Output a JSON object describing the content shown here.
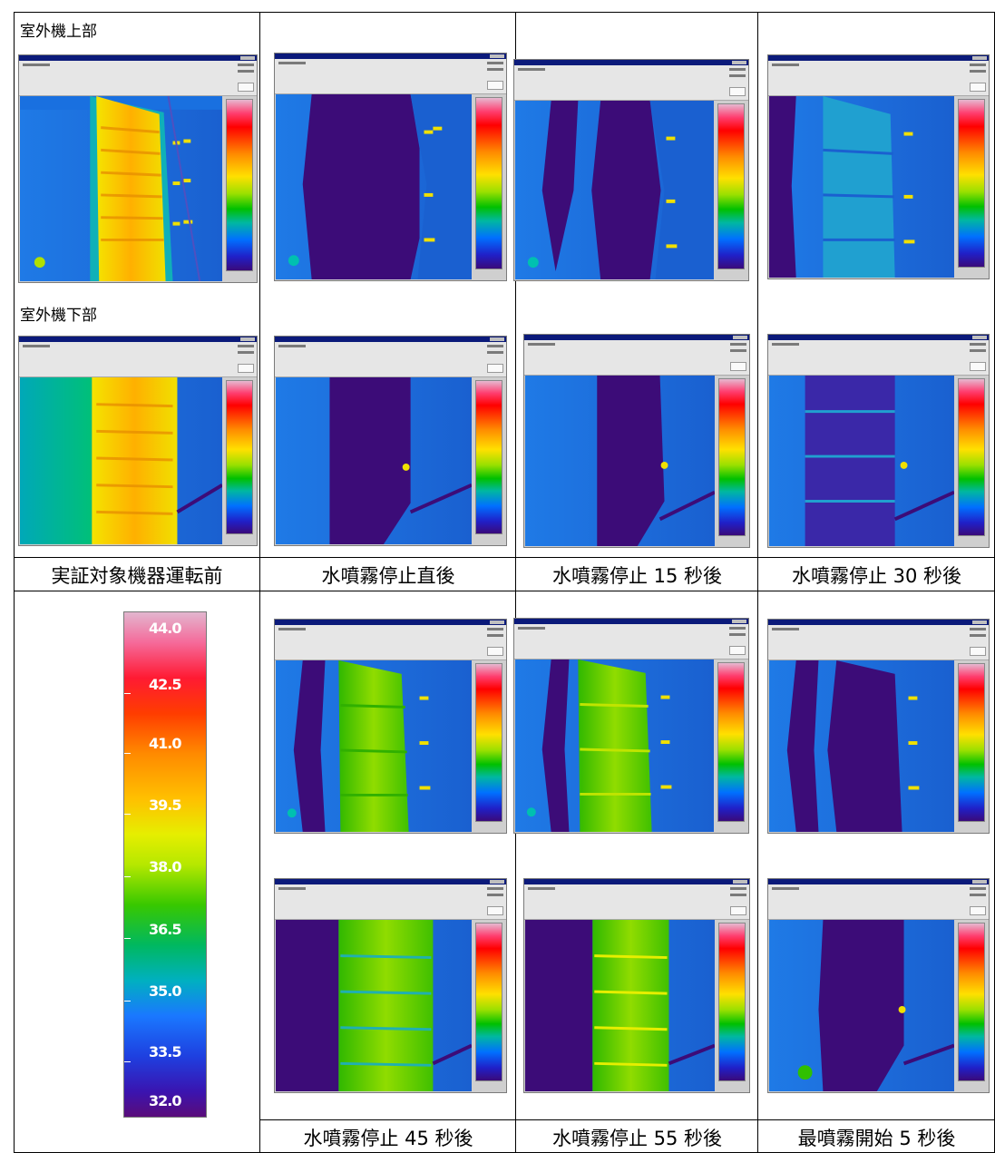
{
  "labels": {
    "upper": "室外機上部",
    "lower": "室外機下部"
  },
  "captions": {
    "row1": [
      "実証対象機器運転前",
      "水噴霧停止直後",
      "水噴霧停止 15 秒後",
      "水噴霧停止 30 秒後"
    ],
    "row2": [
      "水噴霧停止 45 秒後",
      "水噴霧停止 55 秒後",
      "最噴霧開始 5 秒後"
    ]
  },
  "scale": {
    "ticks": [
      "44.0",
      "42.5",
      "41.0",
      "39.5",
      "38.0",
      "36.5",
      "35.0",
      "33.5",
      "32.0"
    ]
  },
  "colors": {
    "bg_blue": "#1a6ad8",
    "cold_purple": "#3a0a7a",
    "warm_yellow": "#e8e800",
    "mid_green": "#3ac000"
  }
}
